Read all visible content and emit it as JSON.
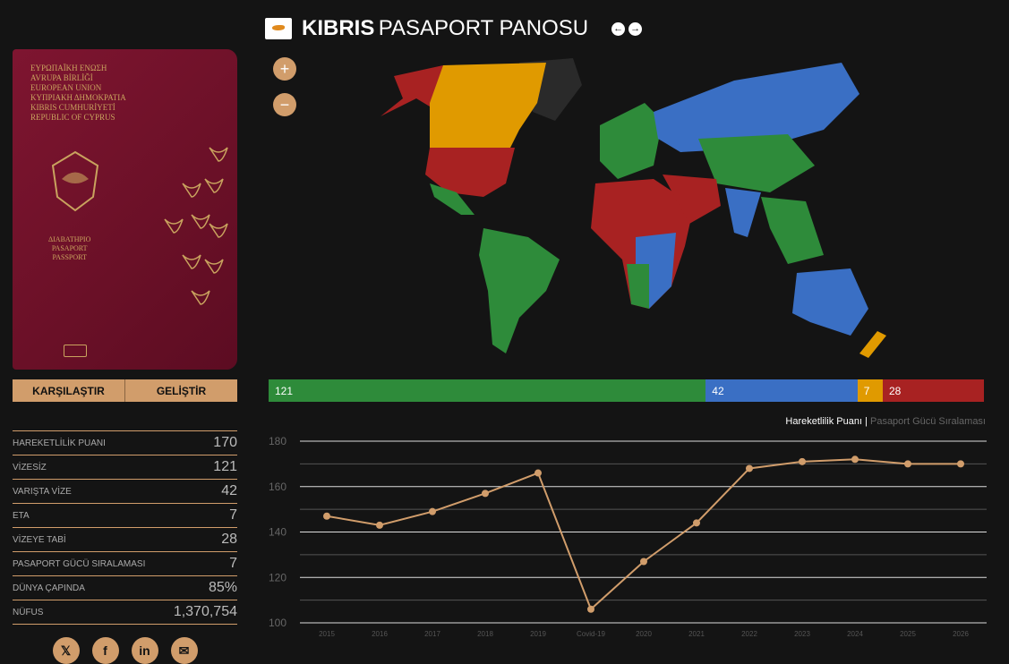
{
  "header": {
    "country": "KIBRIS",
    "title": "PASAPORT PANOSU",
    "prev_icon": "arrow-left-icon",
    "next_icon": "arrow-right-icon"
  },
  "passport": {
    "lines": [
      "ΕΥΡΩΠΑΪΚΗ ΕΝΩΣΗ",
      "AVRUPA BİRLİĞİ",
      "EUROPEAN UNION",
      "ΚΥΠΡΙΑΚΗ ΔΗΜΟΚΡΑΤΙΑ",
      "KIBRIS CUMHURİYETİ",
      "REPUBLIC OF CYPRUS"
    ],
    "doc_lines": [
      "ΔΙΑΒΑΤΗΡΙΟ",
      "PASAPORT",
      "PASSPORT"
    ]
  },
  "buttons": {
    "compare": "KARŞILAŞTIR",
    "enhance": "GELİŞTİR"
  },
  "stats": [
    {
      "label": "HAREKETLİLİK PUANI",
      "value": "170"
    },
    {
      "label": "VİZESİZ",
      "value": "121"
    },
    {
      "label": "VARIŞTA VİZE",
      "value": "42"
    },
    {
      "label": "ETA",
      "value": "7"
    },
    {
      "label": "VİZEYE TABİ",
      "value": "28"
    },
    {
      "label": "PASAPORT GÜCÜ SIRALAMASI",
      "value": "7"
    },
    {
      "label": "DÜNYA ÇAPINDA",
      "value": "85%"
    },
    {
      "label": "NÜFUS",
      "value": "1,370,754"
    }
  ],
  "social": [
    "x-icon",
    "facebook-icon",
    "linkedin-icon",
    "email-icon"
  ],
  "map_controls": {
    "zoom_in": "+",
    "zoom_out": "−"
  },
  "colors": {
    "visa_free": "#2e8b3a",
    "visa_on_arrival": "#3a6fc4",
    "eta": "#e09a00",
    "visa_required": "#a82222",
    "accent": "#d19d6b"
  },
  "breakdown": [
    {
      "value": 121,
      "label": "121",
      "color": "#2e8b3a"
    },
    {
      "value": 42,
      "label": "42",
      "color": "#3a6fc4"
    },
    {
      "value": 7,
      "label": "7",
      "color": "#e09a00"
    },
    {
      "value": 28,
      "label": "28",
      "color": "#a82222"
    }
  ],
  "legend": {
    "active": "Hareketlilik Puanı",
    "separator": "|",
    "inactive": "Pasaport Gücü Sıralaması"
  },
  "chart_data": {
    "type": "line",
    "categories": [
      "2015",
      "2016",
      "2017",
      "2018",
      "2019",
      "Covid-19",
      "2020",
      "2021",
      "2022",
      "2023",
      "2024",
      "2025",
      "2026"
    ],
    "values": [
      147,
      143,
      149,
      157,
      166,
      106,
      127,
      144,
      168,
      171,
      172,
      170,
      170
    ],
    "ylim": [
      100,
      180
    ],
    "yticks": [
      100,
      120,
      140,
      160,
      180
    ],
    "grid": true,
    "color": "#d19d6b"
  }
}
